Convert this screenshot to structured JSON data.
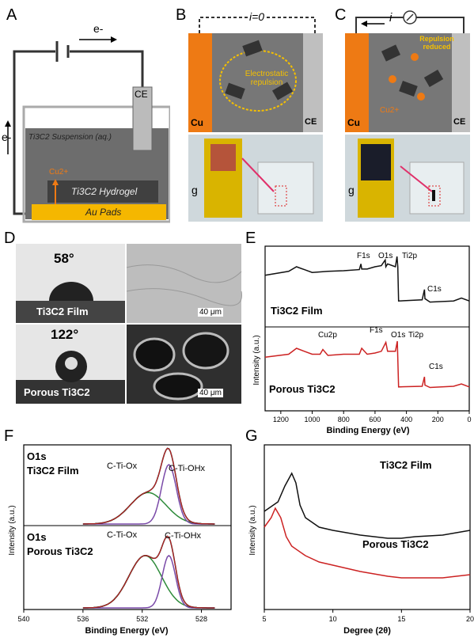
{
  "panels": {
    "A": {
      "label": "A",
      "electron_top": "e-",
      "electron_left": "e-",
      "ce": "CE",
      "suspension": "Ti3C2 Suspension (aq.)",
      "cu_ion": "Cu2+",
      "hydrogel": "Ti3C2 Hydrogel",
      "pads": "Au Pads"
    },
    "B": {
      "label": "B",
      "current": "i=0",
      "cu": "Cu",
      "ce": "CE",
      "repulsion": "Electrostatic repulsion",
      "gravity": "g"
    },
    "C": {
      "label": "C",
      "current": "i",
      "cu": "Cu",
      "ce": "CE",
      "repulsion": "Repulsion reduced",
      "cu_ion": "Cu2+",
      "gravity": "g"
    },
    "D": {
      "label": "D",
      "angle_film": "58°",
      "film_label": "Ti3C2 Film",
      "scale1": "40 μm",
      "angle_porous": "122°",
      "porous_label": "Porous Ti3C2",
      "scale2": "40 μm"
    },
    "E": {
      "label": "E",
      "film_name": "Ti3C2 Film",
      "porous_name": "Porous Ti3C2",
      "peaks_film": [
        "F1s",
        "O1s",
        "Ti2p",
        "C1s"
      ],
      "peaks_porous": [
        "Cu2p",
        "F1s",
        "O1s",
        "Ti2p",
        "C1s"
      ]
    },
    "F": {
      "label": "F",
      "top_o1s": "O1s",
      "top_name": "Ti3C2 Film",
      "top_ox": "C-Ti-Ox",
      "top_ohx": "C-Ti-OHx",
      "bot_o1s": "O1s",
      "bot_name": "Porous Ti3C2",
      "bot_ox": "C-Ti-Ox",
      "bot_ohx": "C-Ti-OHx"
    },
    "G": {
      "label": "G",
      "film_name": "Ti3C2 Film",
      "porous_name": "Porous Ti3C2"
    }
  },
  "colors": {
    "black": "#111111",
    "red": "#cc2222",
    "green": "#2e8b3a",
    "purple": "#7a4aa8",
    "gold": "#f5b700",
    "orange": "#ee7a14",
    "gray": "#8a8a8a"
  },
  "chart_data": [
    {
      "type": "line",
      "panel": "E",
      "xlabel": "Binding Energy (eV)",
      "ylabel": "Intensity (a.u.)",
      "xlim": [
        1300,
        0
      ],
      "xticks": [
        1200,
        1000,
        800,
        600,
        400,
        200,
        0
      ],
      "series": [
        {
          "name": "Ti3C2 Film",
          "x": [
            1300,
            1150,
            1100,
            1050,
            1000,
            900,
            800,
            700,
            690,
            685,
            650,
            600,
            560,
            535,
            531,
            520,
            470,
            460,
            455,
            450,
            300,
            285,
            282,
            250,
            100,
            50,
            0
          ],
          "y": [
            0.85,
            0.92,
            1.0,
            0.95,
            0.9,
            0.92,
            0.93,
            0.95,
            1.05,
            0.96,
            0.96,
            1.0,
            1.02,
            1.12,
            1.0,
            1.05,
            1.0,
            1.18,
            1.0,
            0.4,
            0.42,
            0.6,
            0.44,
            0.38,
            0.4,
            0.45,
            0.4
          ]
        },
        {
          "name": "Porous Ti3C2",
          "x": [
            1300,
            1150,
            1100,
            1050,
            1000,
            950,
            932,
            900,
            800,
            700,
            685,
            650,
            600,
            560,
            531,
            520,
            470,
            458,
            450,
            300,
            285,
            282,
            250,
            100,
            50,
            0
          ],
          "y": [
            0.85,
            0.9,
            1.0,
            0.95,
            0.9,
            0.9,
            0.98,
            0.88,
            0.9,
            0.9,
            1.0,
            0.9,
            0.92,
            0.95,
            1.1,
            0.95,
            0.95,
            1.12,
            0.35,
            0.36,
            0.52,
            0.38,
            0.34,
            0.36,
            0.4,
            0.35
          ]
        }
      ]
    },
    {
      "type": "line",
      "panel": "F",
      "xlabel": "Binding Energy (eV)",
      "ylabel": "Intensity (a.u.)",
      "xlim": [
        540,
        526
      ],
      "xticks": [
        540,
        536,
        532,
        528
      ],
      "series": [
        {
          "name": "Ti3C2 Film",
          "x": [
            533,
            530.2
          ],
          "y": [
            0.5,
            0.9
          ]
        },
        {
          "name": "Porous Ti3C2",
          "x": [
            531.8,
            530.2
          ],
          "y": [
            0.72,
            0.72
          ]
        }
      ]
    },
    {
      "type": "line",
      "panel": "G",
      "xlabel": "Degree (2θ)",
      "ylabel": "Intensity (a.u.)",
      "xlim": [
        5,
        20
      ],
      "xticks": [
        5,
        10,
        15,
        20
      ],
      "series": [
        {
          "name": "Ti3C2 Film",
          "x": [
            5,
            6,
            6.5,
            7,
            7.3,
            7.6,
            8,
            9,
            10,
            12,
            14,
            15,
            16,
            18,
            20
          ],
          "y": [
            0.62,
            0.68,
            0.78,
            0.86,
            0.8,
            0.66,
            0.58,
            0.52,
            0.5,
            0.47,
            0.45,
            0.45,
            0.46,
            0.47,
            0.5
          ]
        },
        {
          "name": "Porous Ti3C2",
          "x": [
            5,
            5.5,
            5.8,
            6.2,
            6.6,
            7,
            8,
            9,
            10,
            12,
            14,
            15,
            16,
            18,
            20
          ],
          "y": [
            0.52,
            0.58,
            0.64,
            0.58,
            0.46,
            0.4,
            0.34,
            0.3,
            0.28,
            0.24,
            0.21,
            0.2,
            0.2,
            0.2,
            0.22
          ]
        }
      ]
    }
  ]
}
